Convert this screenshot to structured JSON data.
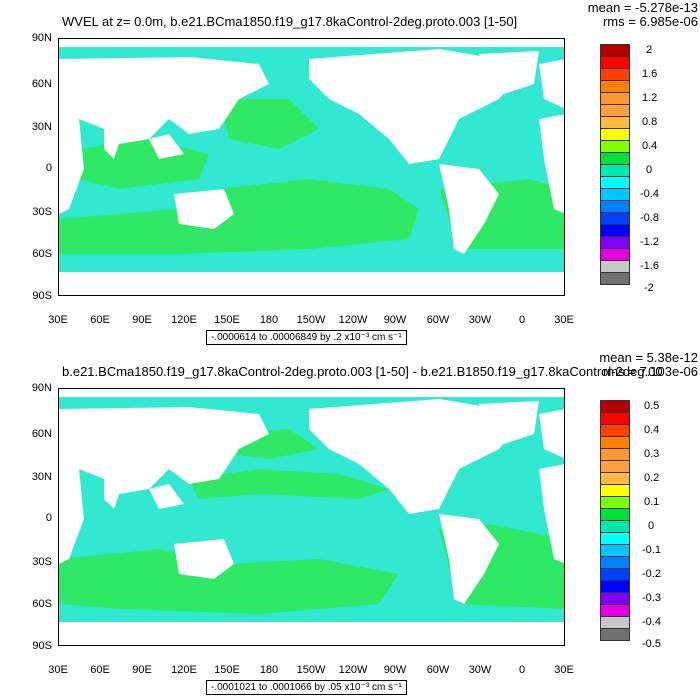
{
  "panels": [
    {
      "title": "WVEL at z=   0.0m, b.e21.BCma1850.f19_g17.8kaControl-2deg.proto.003 [1-50]",
      "mean": "mean = -5.278e-13",
      "rms": "rms = 6.985e-06",
      "range": "-.0000614 to .00006849 by .2 x10⁻³ cm s⁻¹",
      "lat_labels": [
        "90N",
        "60N",
        "30N",
        "0",
        "30S",
        "60S",
        "90S"
      ],
      "lon_labels": [
        "30E",
        "60E",
        "90E",
        "120E",
        "150E",
        "180",
        "150W",
        "120W",
        "90W",
        "60W",
        "30W",
        "0",
        "30E"
      ],
      "colorbar_labels": [
        "2",
        "1.6",
        "1.2",
        "0.8",
        "0.4",
        "0",
        "-0.4",
        "-0.8",
        "-1.2",
        "-1.6",
        "-2"
      ],
      "ocean_color": "#33e8a8",
      "band_color": "#2ee866"
    },
    {
      "title": "b.e21.BCma1850.f19_g17.8kaControl-2deg.proto.003 [1-50] - b.e21.B1850.f19_g17.8kaControl-2deg.00",
      "mean": "mean = 5.38e-12",
      "rms": "rms = 7.103e-06",
      "range": "-.0001021 to .0001066 by .05 x10⁻³ cm s⁻¹",
      "lat_labels": [
        "90N",
        "60N",
        "30N",
        "0",
        "30S",
        "60S",
        "90S"
      ],
      "lon_labels": [
        "30E",
        "60E",
        "90E",
        "120E",
        "150E",
        "180",
        "150W",
        "120W",
        "90W",
        "60W",
        "30W",
        "0",
        "30E"
      ],
      "colorbar_labels": [
        "0.5",
        "0.4",
        "0.3",
        "0.2",
        "0.1",
        "0",
        "-0.1",
        "-0.2",
        "-0.3",
        "-0.4",
        "-0.5"
      ],
      "ocean_color": "#33e8c8",
      "band_color": "#2ee866"
    }
  ],
  "colorbar_colors": [
    "#b40000",
    "#ff0000",
    "#ff4000",
    "#ff8000",
    "#ffa040",
    "#ffc040",
    "#ffff00",
    "#80ff00",
    "#00e040",
    "#00e8b0",
    "#00ffff",
    "#00c8ff",
    "#0080ff",
    "#0040ff",
    "#0000ff",
    "#8000ff",
    "#e000e0",
    "#c8c8c8",
    "#707070"
  ]
}
